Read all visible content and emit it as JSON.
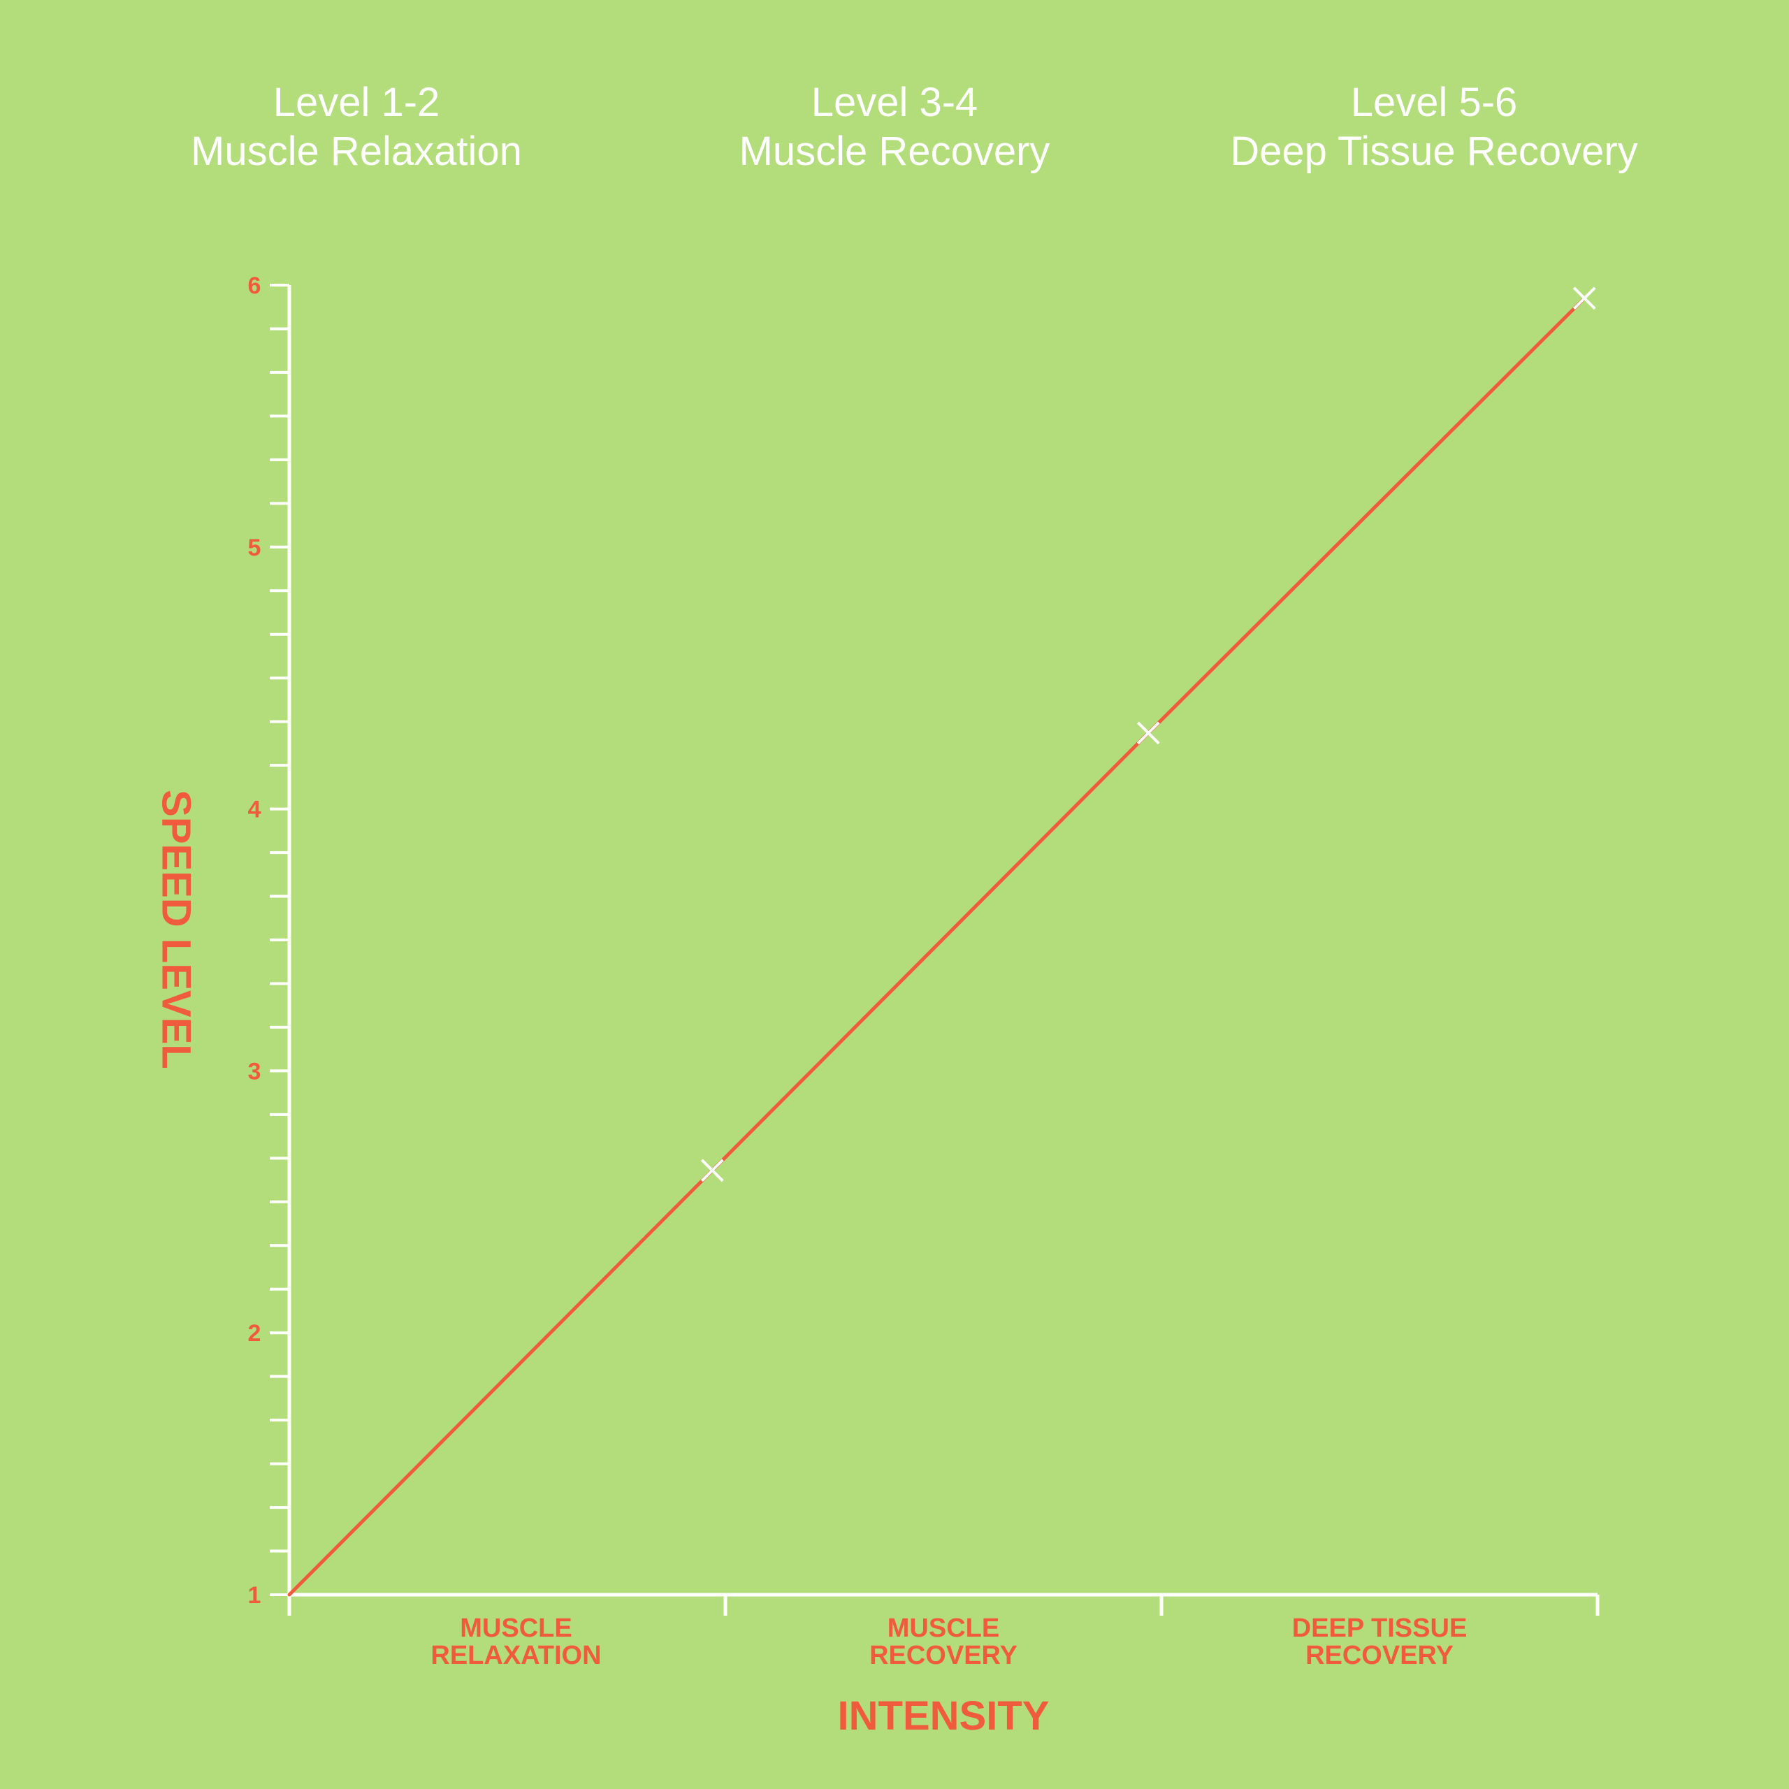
{
  "headers": [
    {
      "level": "Level 1-2",
      "name": "Muscle Relaxation"
    },
    {
      "level": "Level 3-4",
      "name": "Muscle Recovery"
    },
    {
      "level": "Level 5-6",
      "name": "Deep Tissue Recovery"
    }
  ],
  "chart_data": {
    "type": "line",
    "xlabel": "INTENSITY",
    "ylabel": "SPEED LEVEL",
    "categories": [
      {
        "line1": "MUSCLE",
        "line2": "RELAXATION"
      },
      {
        "line1": "MUSCLE",
        "line2": "RECOVERY"
      },
      {
        "line1": "DEEP TISSUE",
        "line2": "RECOVERY"
      }
    ],
    "xlim": [
      0,
      3
    ],
    "ylim": [
      1,
      6
    ],
    "yticks": [
      1,
      2,
      3,
      4,
      5,
      6
    ],
    "minor_tick_step": 0.1667,
    "series": [
      {
        "x": [
          0,
          0.97,
          1.97,
          2.97
        ],
        "y": [
          1,
          2.62,
          4.29,
          5.95
        ],
        "markers": [
          false,
          true,
          true,
          true
        ]
      }
    ],
    "grid": false,
    "legend": "none",
    "colors": {
      "line": "#ef5b3c",
      "axis": "#ffffff",
      "marker": "#ffffff",
      "label": "#ef5b3c",
      "background": "#b3dd7a"
    }
  }
}
